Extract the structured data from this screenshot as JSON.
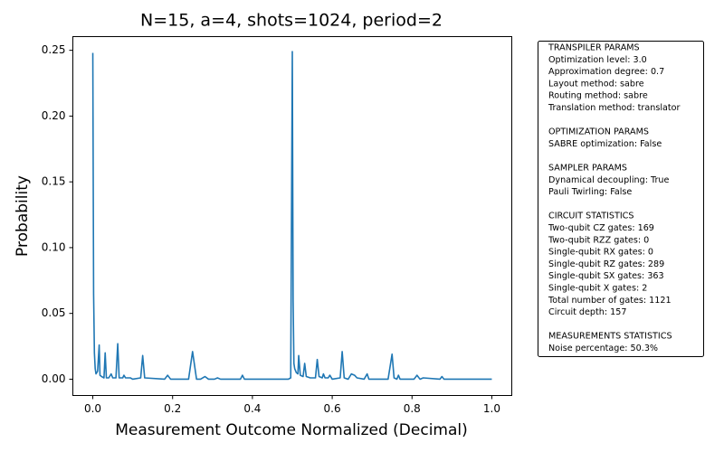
{
  "chart_data": {
    "type": "line",
    "title": "N=15, a=4, shots=1024, period=2",
    "xlabel": "Measurement Outcome Normalized (Decimal)",
    "ylabel": "Probability",
    "xlim": [
      -0.05,
      1.05
    ],
    "ylim": [
      -0.0124,
      0.2604
    ],
    "xticks": [
      {
        "value": 0,
        "label": "0.0"
      },
      {
        "value": 0.2,
        "label": "0.2"
      },
      {
        "value": 0.4,
        "label": "0.4"
      },
      {
        "value": 0.6,
        "label": "0.6"
      },
      {
        "value": 0.8,
        "label": "0.8"
      },
      {
        "value": 1,
        "label": "1.0"
      }
    ],
    "yticks": [
      {
        "value": 0,
        "label": "0.00"
      },
      {
        "value": 0.05,
        "label": "0.05"
      },
      {
        "value": 0.1,
        "label": "0.10"
      },
      {
        "value": 0.15,
        "label": "0.15"
      },
      {
        "value": 0.2,
        "label": "0.20"
      },
      {
        "value": 0.25,
        "label": "0.25"
      }
    ],
    "series": [
      {
        "color": "#1f77b4",
        "x": [
          0,
          0.002,
          0.004,
          0.006,
          0.008,
          0.012,
          0.016,
          0.018,
          0.022,
          0.028,
          0.031,
          0.034,
          0.04,
          0.046,
          0.05,
          0.058,
          0.0625,
          0.066,
          0.075,
          0.078,
          0.082,
          0.09,
          0.094,
          0.1,
          0.12,
          0.125,
          0.13,
          0.18,
          0.1875,
          0.195,
          0.24,
          0.25,
          0.26,
          0.27,
          0.281,
          0.29,
          0.305,
          0.3125,
          0.32,
          0.37,
          0.375,
          0.38,
          0.49,
          0.496,
          0.5,
          0.502,
          0.504,
          0.506,
          0.51,
          0.514,
          0.516,
          0.52,
          0.527,
          0.531,
          0.535,
          0.545,
          0.558,
          0.5625,
          0.567,
          0.575,
          0.578,
          0.582,
          0.59,
          0.594,
          0.6,
          0.62,
          0.625,
          0.63,
          0.64,
          0.648,
          0.656,
          0.662,
          0.68,
          0.6875,
          0.692,
          0.74,
          0.75,
          0.755,
          0.762,
          0.766,
          0.77,
          0.805,
          0.8125,
          0.82,
          0.828,
          0.87,
          0.875,
          0.88,
          1.0
        ],
        "values": [
          0.248,
          0.065,
          0.02,
          0.008,
          0.004,
          0.006,
          0.026,
          0.003,
          0.002,
          0.001,
          0.02,
          0.001,
          0.001,
          0.004,
          0.001,
          0.001,
          0.027,
          0.001,
          0.001,
          0.003,
          0.001,
          0.001,
          0.001,
          0,
          0.001,
          0.018,
          0.001,
          0,
          0.003,
          0,
          0,
          0.021,
          0,
          0,
          0.002,
          0,
          0,
          0.001,
          0,
          0,
          0.003,
          0,
          0,
          0.001,
          0.249,
          0.06,
          0.012,
          0.008,
          0.005,
          0.004,
          0.018,
          0.003,
          0.002,
          0.012,
          0.002,
          0.001,
          0.001,
          0.015,
          0.002,
          0.001,
          0.004,
          0.001,
          0.001,
          0.003,
          0,
          0.001,
          0.021,
          0.001,
          0,
          0.004,
          0.003,
          0.001,
          0,
          0.004,
          0,
          0,
          0.019,
          0.001,
          0,
          0.003,
          0,
          0,
          0.003,
          0,
          0.001,
          0,
          0.002,
          0,
          0
        ]
      }
    ]
  },
  "info_box": [
    {
      "heading": "TRANSPILER PARAMS",
      "lines": [
        "Optimization level: 3.0",
        "Approximation degree: 0.7",
        "Layout method: sabre",
        "Routing method: sabre",
        "Translation method: translator"
      ]
    },
    {
      "heading": "OPTIMIZATION PARAMS",
      "lines": [
        "SABRE optimization: False"
      ]
    },
    {
      "heading": "SAMPLER PARAMS",
      "lines": [
        "Dynamical decoupling: True",
        "Pauli Twirling: False"
      ]
    },
    {
      "heading": "CIRCUIT STATISTICS",
      "lines": [
        "Two-qubit CZ gates: 169",
        "Two-qubit RZZ gates: 0",
        "Single-qubit RX gates: 0",
        "Single-qubit RZ gates: 289",
        "Single-qubit SX gates: 363",
        "Single-qubit X gates: 2",
        "Total number of gates: 1121",
        "Circuit depth: 157"
      ]
    },
    {
      "heading": "MEASUREMENTS STATISTICS",
      "lines": [
        "Noise percentage: 50.3%"
      ]
    }
  ]
}
